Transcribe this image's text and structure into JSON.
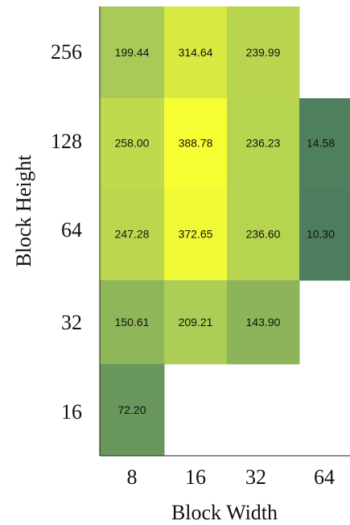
{
  "chart_data": {
    "type": "heatmap",
    "xlabel": "Block Width",
    "ylabel": "Block Height",
    "x_categories": [
      "8",
      "16",
      "32",
      "64"
    ],
    "y_categories": [
      "256",
      "128",
      "64",
      "32",
      "16"
    ],
    "grid": false,
    "legend": "none",
    "colormap": {
      "low": "#4c7e5e",
      "mid": "#a8ca58",
      "high": "#f7ff34"
    },
    "cells": [
      {
        "x": "8",
        "y": "256",
        "value": 199.44,
        "label": "199.44"
      },
      {
        "x": "16",
        "y": "256",
        "value": 314.64,
        "label": "314.64"
      },
      {
        "x": "32",
        "y": "256",
        "value": 239.99,
        "label": "239.99"
      },
      {
        "x": "8",
        "y": "128",
        "value": 258.0,
        "label": "258.00"
      },
      {
        "x": "16",
        "y": "128",
        "value": 388.78,
        "label": "388.78"
      },
      {
        "x": "32",
        "y": "128",
        "value": 236.23,
        "label": "236.23"
      },
      {
        "x": "64",
        "y": "128",
        "value": 14.58,
        "label": "14.58"
      },
      {
        "x": "8",
        "y": "64",
        "value": 247.28,
        "label": "247.28"
      },
      {
        "x": "16",
        "y": "64",
        "value": 372.65,
        "label": "372.65"
      },
      {
        "x": "32",
        "y": "64",
        "value": 236.6,
        "label": "236.60"
      },
      {
        "x": "64",
        "y": "64",
        "value": 10.3,
        "label": "10.30"
      },
      {
        "x": "8",
        "y": "32",
        "value": 150.61,
        "label": "150.61"
      },
      {
        "x": "16",
        "y": "32",
        "value": 209.21,
        "label": "209.21"
      },
      {
        "x": "32",
        "y": "32",
        "value": 143.9,
        "label": "143.90"
      },
      {
        "x": "8",
        "y": "16",
        "value": 72.2,
        "label": "72.20"
      }
    ]
  }
}
